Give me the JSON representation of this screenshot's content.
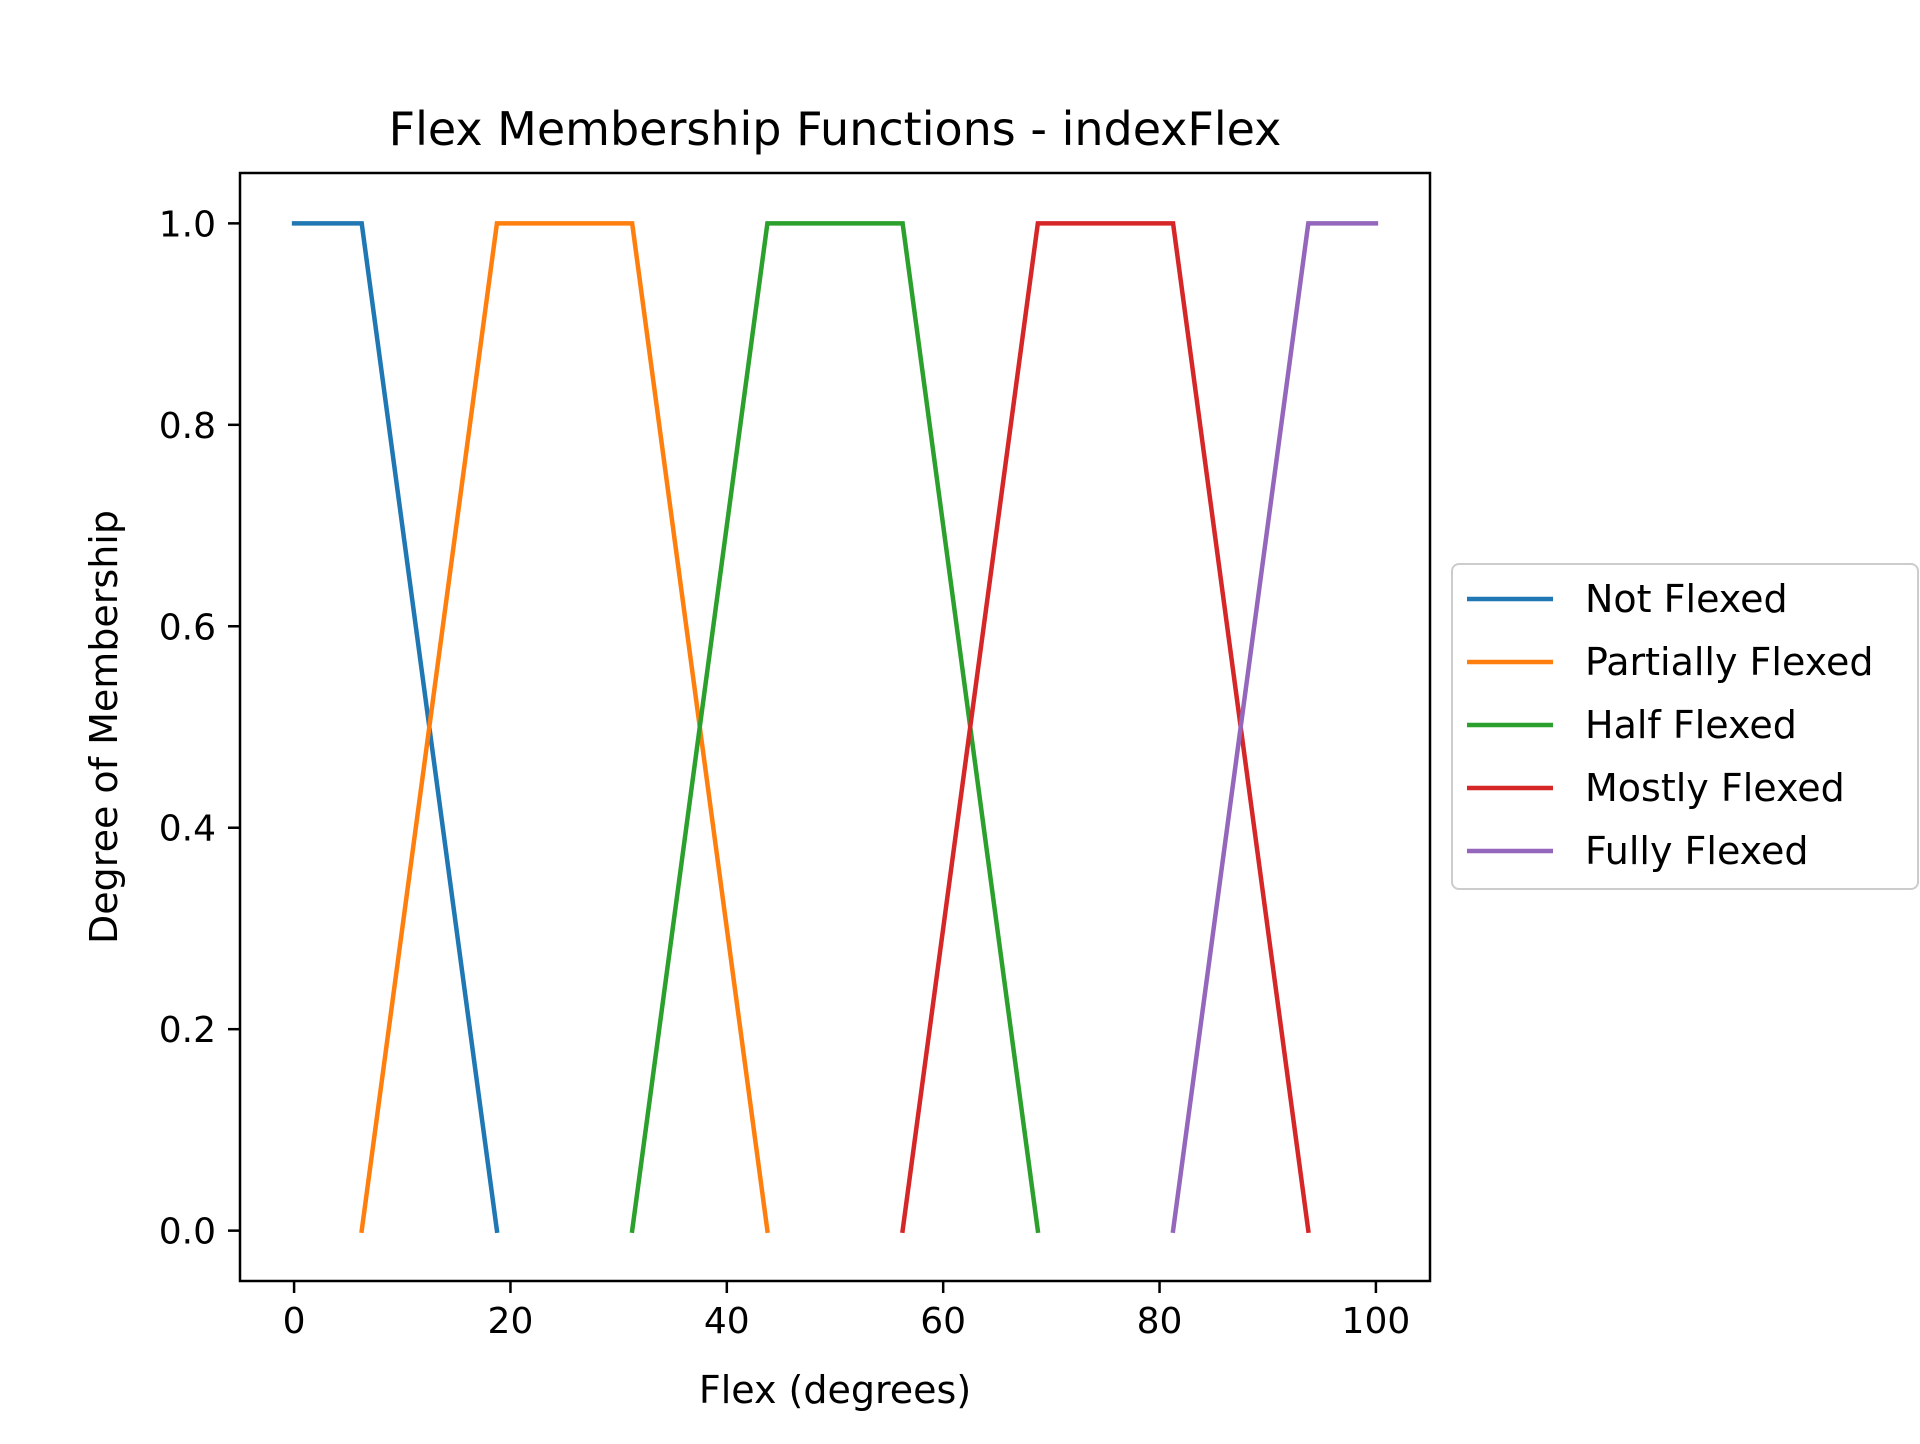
{
  "chart_data": {
    "type": "line",
    "title": "Flex Membership Functions - indexFlex",
    "xlabel": "Flex (degrees)",
    "ylabel": "Degree of Membership",
    "xlim": [
      -5,
      105
    ],
    "ylim": [
      -0.05,
      1.05
    ],
    "xticks": [
      0,
      20,
      40,
      60,
      80,
      100
    ],
    "xtick_labels": [
      "0",
      "20",
      "40",
      "60",
      "80",
      "100"
    ],
    "yticks": [
      0.0,
      0.2,
      0.4,
      0.6,
      0.8,
      1.0
    ],
    "ytick_labels": [
      "0.0",
      "0.2",
      "0.4",
      "0.6",
      "0.8",
      "1.0"
    ],
    "grid": false,
    "legend_position": "center-right, outside plot area",
    "series": [
      {
        "name": "Not Flexed",
        "color": "#1f77b4",
        "points": [
          [
            0,
            1
          ],
          [
            6.25,
            1
          ],
          [
            18.75,
            0
          ]
        ]
      },
      {
        "name": "Partially Flexed",
        "color": "#ff7f0e",
        "points": [
          [
            6.25,
            0
          ],
          [
            18.75,
            1
          ],
          [
            31.25,
            1
          ],
          [
            43.75,
            0
          ]
        ]
      },
      {
        "name": "Half Flexed",
        "color": "#2ca02c",
        "points": [
          [
            31.25,
            0
          ],
          [
            43.75,
            1
          ],
          [
            56.25,
            1
          ],
          [
            68.75,
            0
          ]
        ]
      },
      {
        "name": "Mostly Flexed",
        "color": "#d62728",
        "points": [
          [
            56.25,
            0
          ],
          [
            68.75,
            1
          ],
          [
            81.25,
            1
          ],
          [
            93.75,
            0
          ]
        ]
      },
      {
        "name": "Fully Flexed",
        "color": "#9467bd",
        "points": [
          [
            81.25,
            0
          ],
          [
            93.75,
            1
          ],
          [
            100,
            1
          ]
        ]
      }
    ]
  }
}
